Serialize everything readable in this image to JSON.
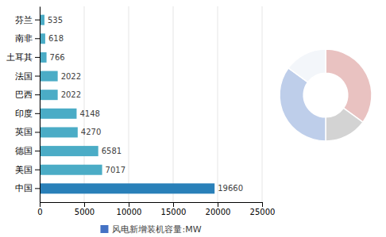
{
  "chart_data": [
    {
      "type": "bar",
      "orientation": "horizontal",
      "categories": [
        "芬兰",
        "南非",
        "土耳其",
        "法国",
        "巴西",
        "印度",
        "英国",
        "德国",
        "美国",
        "中国"
      ],
      "series": [
        {
          "name": "风电新增装机容量:MW",
          "color": "#4472c4",
          "colors": [
            "#4bacc6",
            "#4bacc6",
            "#4bacc6",
            "#4bacc6",
            "#4bacc6",
            "#4bacc6",
            "#4bacc6",
            "#4bacc6",
            "#4bacc6",
            "#2980b9"
          ],
          "values": [
            535,
            618,
            766,
            2022,
            2022,
            4148,
            4270,
            6581,
            7017,
            19660
          ]
        }
      ],
      "xlim": [
        0,
        25000
      ],
      "xticks": [
        0,
        5000,
        10000,
        15000,
        20000,
        25000
      ],
      "grid": true,
      "data_labels": true,
      "legend": "bottom"
    },
    {
      "type": "donut",
      "values": [
        35,
        15,
        35,
        15
      ],
      "colors": [
        "#c0504d",
        "#808080",
        "#4472c4",
        "#dce6f1"
      ]
    }
  ]
}
